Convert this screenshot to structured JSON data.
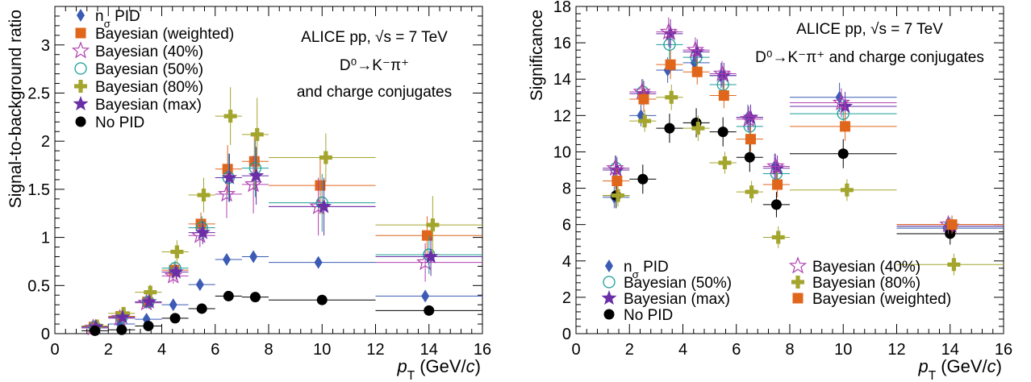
{
  "chart_data": [
    {
      "type": "scatter",
      "title": "",
      "annotations": [
        "ALICE pp, √s = 7 TeV",
        "D⁰→K⁻π⁺",
        "and charge conjugates"
      ],
      "xlabel": "p_T (GeV/c)",
      "ylabel": "Signal-to-background ratio",
      "xlim": [
        0,
        16
      ],
      "ylim": [
        0,
        3.4
      ],
      "xticks": [
        "0",
        "2",
        "4",
        "6",
        "8",
        "10",
        "12",
        "14",
        "16"
      ],
      "yticks": [
        "0",
        "0.5",
        "1",
        "1.5",
        "2",
        "2.5",
        "3"
      ],
      "legend": "top-left",
      "bins": [
        [
          1,
          2
        ],
        [
          2,
          3
        ],
        [
          3,
          4
        ],
        [
          4,
          5
        ],
        [
          5,
          6
        ],
        [
          6,
          7
        ],
        [
          7,
          8
        ],
        [
          8,
          12
        ],
        [
          12,
          16
        ]
      ],
      "series": [
        {
          "name": "n_σ PID",
          "marker": "diamond",
          "color": "#3b5bb5",
          "values": [
            0.06,
            0.1,
            0.15,
            0.3,
            0.51,
            0.77,
            0.8,
            0.74,
            0.39
          ],
          "errors": [
            0.02,
            0.02,
            0.02,
            0.03,
            0.04,
            0.05,
            0.06,
            0.05,
            0.05
          ]
        },
        {
          "name": "Bayesian (weighted)",
          "marker": "square",
          "color": "#e0661b",
          "values": [
            0.07,
            0.18,
            0.33,
            0.66,
            1.14,
            1.71,
            1.79,
            1.54,
            1.02
          ],
          "errors": [
            0.03,
            0.04,
            0.06,
            0.08,
            0.12,
            0.25,
            0.3,
            0.3,
            0.2
          ]
        },
        {
          "name": "Bayesian (40%)",
          "marker": "star-open",
          "color": "#b040b0",
          "values": [
            0.06,
            0.16,
            0.32,
            0.6,
            1.02,
            1.45,
            1.55,
            1.32,
            0.74
          ],
          "errors": [
            0.03,
            0.04,
            0.06,
            0.08,
            0.12,
            0.25,
            0.3,
            0.3,
            0.2
          ]
        },
        {
          "name": "Bayesian (50%)",
          "marker": "circle-open",
          "color": "#1a9e96",
          "values": [
            0.07,
            0.17,
            0.33,
            0.68,
            1.1,
            1.62,
            1.72,
            1.36,
            0.82
          ],
          "errors": [
            0.03,
            0.04,
            0.06,
            0.08,
            0.12,
            0.25,
            0.3,
            0.3,
            0.2
          ]
        },
        {
          "name": "Bayesian (80%)",
          "marker": "cross",
          "color": "#a3a52c",
          "values": [
            0.08,
            0.21,
            0.43,
            0.85,
            1.44,
            2.26,
            2.07,
            1.83,
            1.13
          ],
          "errors": [
            0.04,
            0.06,
            0.08,
            0.12,
            0.18,
            0.3,
            0.38,
            0.25,
            0.3
          ]
        },
        {
          "name": "Bayesian (max)",
          "marker": "star",
          "color": "#6a2fa6",
          "values": [
            0.07,
            0.17,
            0.33,
            0.64,
            1.05,
            1.62,
            1.64,
            1.32,
            0.8
          ],
          "errors": [
            0.03,
            0.04,
            0.06,
            0.08,
            0.12,
            0.25,
            0.3,
            0.3,
            0.2
          ]
        },
        {
          "name": "No PID",
          "marker": "circle",
          "color": "#000000",
          "values": [
            0.03,
            0.04,
            0.08,
            0.16,
            0.26,
            0.39,
            0.38,
            0.35,
            0.24
          ],
          "errors": [
            0.01,
            0.01,
            0.01,
            0.02,
            0.02,
            0.03,
            0.03,
            0.03,
            0.03
          ]
        }
      ]
    },
    {
      "type": "scatter",
      "title": "",
      "annotations": [
        "ALICE pp, √s = 7 TeV",
        "D⁰→K⁻π⁺ and charge conjugates"
      ],
      "xlabel": "p_T (GeV/c)",
      "ylabel": "Significance",
      "xlim": [
        0,
        16
      ],
      "ylim": [
        0,
        18
      ],
      "xticks": [
        "0",
        "2",
        "4",
        "6",
        "8",
        "10",
        "12",
        "14",
        "16"
      ],
      "yticks": [
        "0",
        "2",
        "4",
        "6",
        "8",
        "10",
        "12",
        "14",
        "16",
        "18"
      ],
      "legend": "bottom-left",
      "bins": [
        [
          1,
          2
        ],
        [
          2,
          3
        ],
        [
          3,
          4
        ],
        [
          4,
          5
        ],
        [
          5,
          6
        ],
        [
          6,
          7
        ],
        [
          7,
          8
        ],
        [
          8,
          12
        ],
        [
          12,
          16
        ]
      ],
      "series": [
        {
          "name": "n_σ PID",
          "marker": "diamond",
          "color": "#3b5bb5",
          "values": [
            7.5,
            12.0,
            14.5,
            14.9,
            14.2,
            11.9,
            9.2,
            13.0,
            5.8
          ],
          "errors": [
            0.6,
            0.6,
            0.7,
            0.7,
            0.7,
            0.7,
            0.7,
            0.8,
            0.5
          ]
        },
        {
          "name": "Bayesian (50%)",
          "marker": "circle-open",
          "color": "#1a9e96",
          "values": [
            9.1,
            13.3,
            15.9,
            15.2,
            13.7,
            11.4,
            8.8,
            12.1,
            5.9
          ],
          "errors": [
            0.7,
            0.7,
            0.8,
            0.7,
            0.7,
            0.7,
            0.7,
            0.8,
            0.5
          ]
        },
        {
          "name": "Bayesian (max)",
          "marker": "star",
          "color": "#6a2fa6",
          "values": [
            9.0,
            13.2,
            16.5,
            15.5,
            14.2,
            11.9,
            9.1,
            12.5,
            5.9
          ],
          "errors": [
            0.7,
            0.7,
            0.8,
            0.7,
            0.7,
            0.7,
            0.7,
            0.8,
            0.5
          ]
        },
        {
          "name": "No PID",
          "marker": "circle",
          "color": "#000000",
          "values": [
            7.6,
            8.5,
            11.3,
            11.6,
            11.1,
            9.7,
            7.1,
            9.9,
            5.5
          ],
          "errors": [
            0.7,
            0.8,
            0.8,
            0.8,
            0.8,
            0.8,
            0.7,
            0.8,
            0.6
          ]
        },
        {
          "name": "Bayesian (40%)",
          "marker": "star-open",
          "color": "#b040b0",
          "values": [
            9.1,
            13.3,
            16.6,
            15.6,
            14.3,
            11.8,
            9.2,
            12.7,
            6.0
          ],
          "errors": [
            0.7,
            0.7,
            0.8,
            0.7,
            0.7,
            0.7,
            0.7,
            0.8,
            0.5
          ]
        },
        {
          "name": "Bayesian (80%)",
          "marker": "cross",
          "color": "#a3a52c",
          "values": [
            7.6,
            11.7,
            13.0,
            11.3,
            9.4,
            7.8,
            5.3,
            7.9,
            3.8
          ],
          "errors": [
            0.6,
            0.6,
            0.7,
            0.7,
            0.6,
            0.6,
            0.6,
            0.6,
            0.6
          ]
        },
        {
          "name": "Bayesian (weighted)",
          "marker": "square",
          "color": "#e0661b",
          "values": [
            8.4,
            12.9,
            14.8,
            14.4,
            13.1,
            10.7,
            8.2,
            11.4,
            6.0
          ],
          "errors": [
            0.7,
            0.7,
            0.8,
            0.7,
            0.7,
            0.7,
            0.7,
            0.8,
            0.5
          ]
        }
      ]
    }
  ]
}
